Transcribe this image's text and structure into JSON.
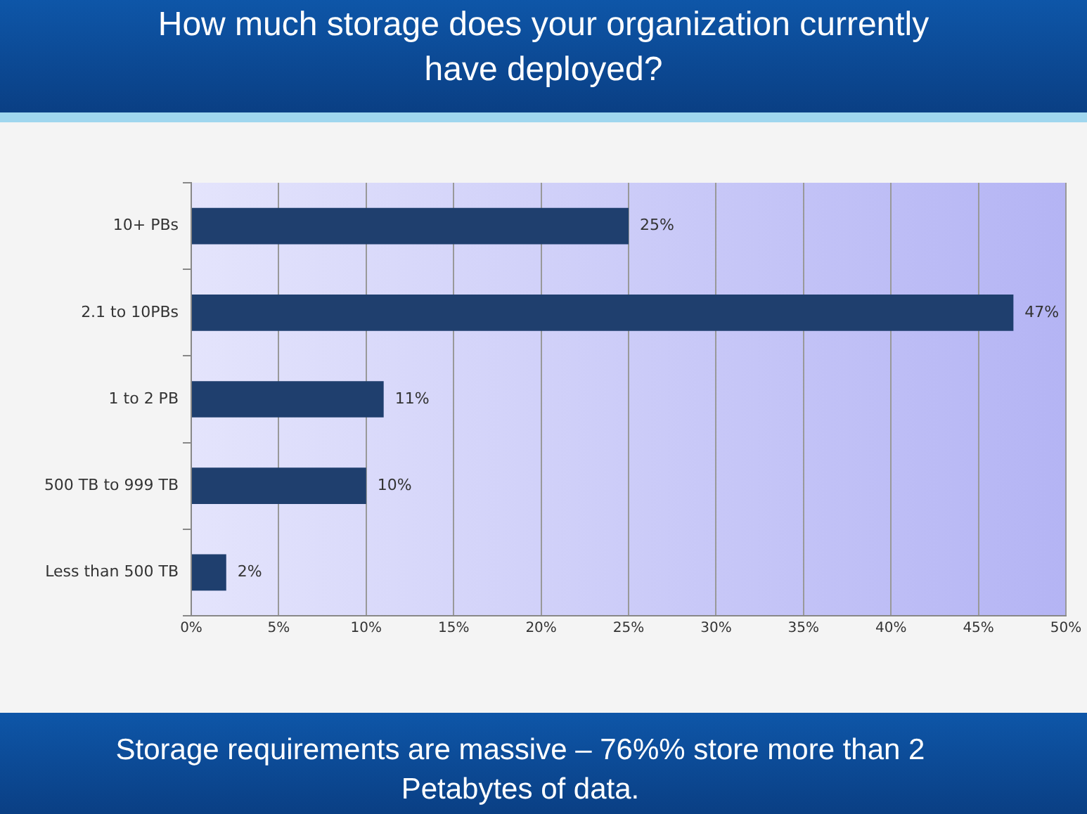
{
  "chart_data": {
    "type": "bar",
    "orientation": "horizontal",
    "title": "How much storage does your organization currently have deployed?",
    "categories": [
      "10+ PBs",
      "2.1 to 10PBs",
      "1 to 2 PB",
      "500 TB to 999 TB",
      "Less than 500 TB"
    ],
    "values": [
      25,
      47,
      11,
      10,
      2
    ],
    "value_labels": [
      "25%",
      "47%",
      "11%",
      "10%",
      "2%"
    ],
    "color": "#1f3f6e",
    "xlim": [
      0,
      50
    ],
    "xticks": [
      {
        "value": 0,
        "label": "0%"
      },
      {
        "value": 5,
        "label": "5%"
      },
      {
        "value": 10,
        "label": "10%"
      },
      {
        "value": 15,
        "label": "15%"
      },
      {
        "value": 20,
        "label": "20%"
      },
      {
        "value": 25,
        "label": "25%"
      },
      {
        "value": 30,
        "label": "30%"
      },
      {
        "value": 35,
        "label": "35%"
      },
      {
        "value": 40,
        "label": "40%"
      },
      {
        "value": 45,
        "label": "45%"
      },
      {
        "value": 50,
        "label": "50%"
      }
    ],
    "grid": "x",
    "legend": false,
    "annotations": [
      "Storage requirements are massive – 76%% store more than 2 Petabytes of data."
    ]
  }
}
